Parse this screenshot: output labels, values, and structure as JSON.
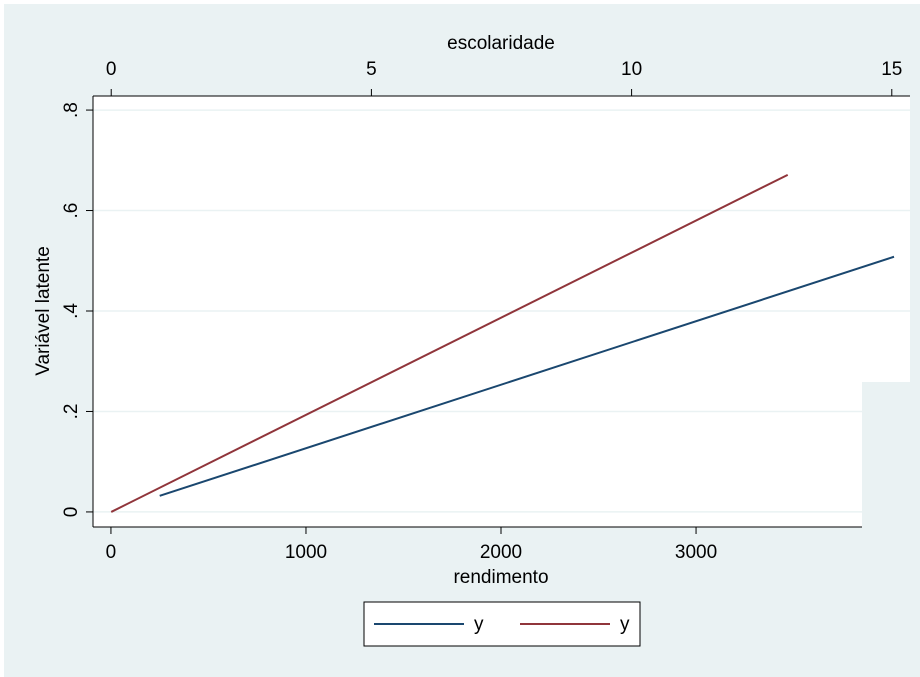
{
  "chart_data": {
    "type": "line",
    "xlabel": "rendimento",
    "x2label": "escolaridade",
    "ylabel": "Variável latente",
    "xlim": [
      -92,
      4097
    ],
    "xticks": [
      0,
      1000,
      2000,
      3000
    ],
    "x2lim": [
      -0.35,
      15.35
    ],
    "x2ticks": [
      0,
      5,
      10,
      15
    ],
    "ylim": [
      -0.03,
      0.828
    ],
    "yticks": [
      0,
      {
        "value": 0.2,
        "label": ".2"
      },
      {
        "value": 0.4,
        "label": ".4"
      },
      {
        "value": 0.6,
        "label": ".6"
      },
      {
        "value": 0.8,
        "label": ".8"
      }
    ],
    "grid": true,
    "series": [
      {
        "name": "y",
        "color": "#1a476f",
        "x": [
          250,
          4015
        ],
        "values": [
          0.032,
          0.508
        ]
      },
      {
        "name": "y",
        "color": "#90353b",
        "axis": "x2",
        "x": [
          0,
          13
        ],
        "values": [
          0,
          0.671
        ]
      }
    ]
  }
}
